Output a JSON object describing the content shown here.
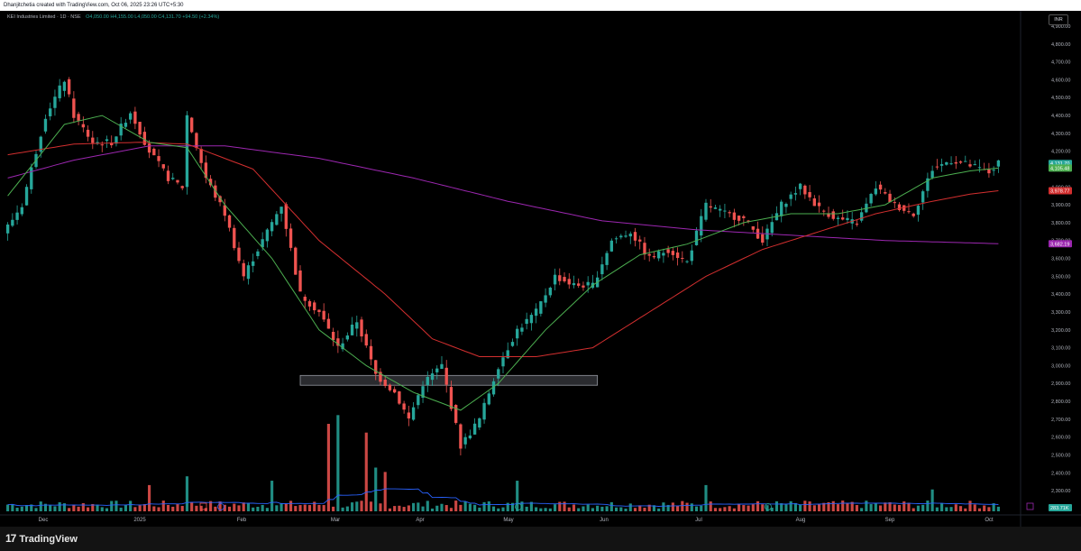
{
  "header": {
    "creator": "Dhanjitchetia created with TradingView.com, Oct 06, 2025 23:26 UTC+5:30"
  },
  "legend": {
    "name": "KEI Industries Limited · 1D · NSE",
    "open": "O4,050.00",
    "high": "H4,155.00",
    "low": "L4,050.00",
    "close": "C4,131.70",
    "change": "+94.50 (+2.34%)"
  },
  "currency": "INR",
  "branding": {
    "name": "TradingView",
    "mark": "17"
  },
  "colors": {
    "up": "#26a69a",
    "down": "#ef5350",
    "ema20": "#4caf50",
    "ema50": "#d32f2f",
    "ema200": "#9c27b0",
    "volume_ma": "#2962ff"
  },
  "chart_data": {
    "type": "candlestick",
    "price_axis": {
      "min": 2250,
      "max": 4900,
      "ticks": [
        "4,900.00",
        "4,800.00",
        "4,700.00",
        "4,600.00",
        "4,500.00",
        "4,400.00",
        "4,300.00",
        "4,200.00",
        "4,100.00",
        "4,000.00",
        "3,900.00",
        "3,800.00",
        "3,700.00",
        "3,600.00",
        "3,500.00",
        "3,400.00",
        "3,300.00",
        "3,200.00",
        "3,100.00",
        "3,000.00",
        "2,900.00",
        "2,800.00",
        "2,700.00",
        "2,600.00",
        "2,500.00",
        "2,400.00",
        "2,300.00"
      ]
    },
    "time_axis": [
      "Dec",
      "2025",
      "Feb",
      "Mar",
      "Apr",
      "May",
      "Jun",
      "Jul",
      "Aug",
      "Sep",
      "Oct"
    ],
    "price_labels": [
      {
        "text": "4,131.70",
        "value": 4131.7,
        "color": "#26a69a"
      },
      {
        "text": "4,105.48",
        "value": 4105.48,
        "color": "#4caf50"
      },
      {
        "text": "3,978.77",
        "value": 3978.77,
        "color": "#d32f2f"
      },
      {
        "text": "3,682.19",
        "value": 3682.19,
        "color": "#9c27b0"
      }
    ],
    "volume_label": {
      "text": "283.71K",
      "color": "#26a69a"
    },
    "zone": {
      "from": 2890,
      "to": 2945,
      "start_index": 62,
      "end_index": 125
    },
    "series_points": [
      [
        0,
        3780
      ],
      [
        3,
        3900
      ],
      [
        8,
        4400
      ],
      [
        12,
        4600
      ],
      [
        14,
        4400
      ],
      [
        18,
        4250
      ],
      [
        22,
        4250
      ],
      [
        26,
        4420
      ],
      [
        30,
        4200
      ],
      [
        34,
        4050
      ],
      [
        37,
        4000
      ],
      [
        38,
        4400
      ],
      [
        42,
        4050
      ],
      [
        46,
        3850
      ],
      [
        50,
        3500
      ],
      [
        54,
        3700
      ],
      [
        58,
        3900
      ],
      [
        62,
        3400
      ],
      [
        66,
        3300
      ],
      [
        70,
        3100
      ],
      [
        74,
        3250
      ],
      [
        78,
        2950
      ],
      [
        82,
        2850
      ],
      [
        85,
        2700
      ],
      [
        88,
        2900
      ],
      [
        92,
        3000
      ],
      [
        96,
        2550
      ],
      [
        100,
        2700
      ],
      [
        104,
        3000
      ],
      [
        108,
        3200
      ],
      [
        112,
        3300
      ],
      [
        116,
        3500
      ],
      [
        120,
        3450
      ],
      [
        124,
        3450
      ],
      [
        128,
        3700
      ],
      [
        132,
        3750
      ],
      [
        136,
        3600
      ],
      [
        140,
        3650
      ],
      [
        144,
        3580
      ],
      [
        148,
        3900
      ],
      [
        152,
        3850
      ],
      [
        156,
        3820
      ],
      [
        160,
        3700
      ],
      [
        164,
        3900
      ],
      [
        168,
        4000
      ],
      [
        172,
        3880
      ],
      [
        176,
        3820
      ],
      [
        180,
        3800
      ],
      [
        184,
        4000
      ],
      [
        188,
        3900
      ],
      [
        192,
        3850
      ],
      [
        196,
        4100
      ],
      [
        200,
        4150
      ],
      [
        204,
        4120
      ],
      [
        208,
        4080
      ],
      [
        210,
        4131.7
      ]
    ],
    "ema20_points": [
      [
        0,
        3950
      ],
      [
        12,
        4350
      ],
      [
        20,
        4400
      ],
      [
        30,
        4250
      ],
      [
        38,
        4220
      ],
      [
        46,
        3900
      ],
      [
        56,
        3600
      ],
      [
        66,
        3200
      ],
      [
        76,
        3000
      ],
      [
        86,
        2850
      ],
      [
        96,
        2750
      ],
      [
        104,
        2900
      ],
      [
        114,
        3200
      ],
      [
        124,
        3450
      ],
      [
        134,
        3620
      ],
      [
        144,
        3680
      ],
      [
        156,
        3800
      ],
      [
        166,
        3850
      ],
      [
        176,
        3850
      ],
      [
        186,
        3900
      ],
      [
        196,
        4050
      ],
      [
        204,
        4090
      ],
      [
        210,
        4105.48
      ]
    ],
    "ema50_points": [
      [
        0,
        4180
      ],
      [
        14,
        4240
      ],
      [
        28,
        4250
      ],
      [
        38,
        4240
      ],
      [
        52,
        4100
      ],
      [
        66,
        3700
      ],
      [
        80,
        3400
      ],
      [
        90,
        3150
      ],
      [
        100,
        3050
      ],
      [
        112,
        3050
      ],
      [
        124,
        3100
      ],
      [
        136,
        3300
      ],
      [
        148,
        3500
      ],
      [
        160,
        3650
      ],
      [
        172,
        3750
      ],
      [
        184,
        3850
      ],
      [
        196,
        3920
      ],
      [
        204,
        3960
      ],
      [
        210,
        3978.77
      ]
    ],
    "ema200_points": [
      [
        0,
        4050
      ],
      [
        14,
        4150
      ],
      [
        30,
        4230
      ],
      [
        46,
        4230
      ],
      [
        66,
        4160
      ],
      [
        86,
        4050
      ],
      [
        106,
        3920
      ],
      [
        126,
        3810
      ],
      [
        146,
        3760
      ],
      [
        166,
        3730
      ],
      [
        186,
        3700
      ],
      [
        200,
        3690
      ],
      [
        210,
        3682.19
      ]
    ],
    "volume_spikes": [
      [
        30,
        "#ef5350",
        0.3
      ],
      [
        38,
        "#26a69a",
        0.4
      ],
      [
        56,
        "#26a69a",
        0.35
      ],
      [
        68,
        "#ef5350",
        1.0
      ],
      [
        70,
        "#26a69a",
        1.1
      ],
      [
        76,
        "#ef5350",
        0.9
      ],
      [
        78,
        "#26a69a",
        0.5
      ],
      [
        80,
        "#ef5350",
        0.45
      ],
      [
        108,
        "#26a69a",
        0.35
      ],
      [
        148,
        "#26a69a",
        0.3
      ],
      [
        196,
        "#26a69a",
        0.25
      ]
    ]
  }
}
